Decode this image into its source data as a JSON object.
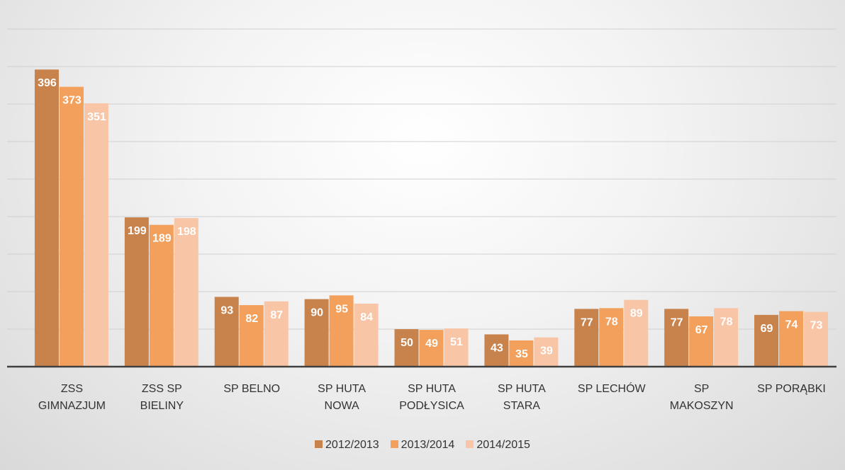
{
  "chart_data": {
    "type": "bar",
    "categories": [
      "ZSS GIMNAZJUM",
      "ZSS SP BIELINY",
      "SP BELNO",
      "SP HUTA NOWA",
      "SP HUTA PODŁYSICA",
      "SP HUTA STARA",
      "SP LECHÓW",
      "SP MAKOSZYN",
      "SP PORĄBKI"
    ],
    "series": [
      {
        "name": "2012/2013",
        "color": "#c8834c",
        "values": [
          396,
          199,
          93,
          90,
          50,
          43,
          77,
          77,
          69
        ]
      },
      {
        "name": "2013/2014",
        "color": "#f3a05c",
        "values": [
          373,
          189,
          82,
          95,
          49,
          35,
          78,
          67,
          74
        ]
      },
      {
        "name": "2014/2015",
        "color": "#f8c6a6",
        "values": [
          351,
          198,
          87,
          84,
          51,
          39,
          89,
          78,
          73
        ]
      }
    ],
    "ylim": [
      0,
      450
    ],
    "yticks": [
      0,
      50,
      100,
      150,
      200,
      250,
      300,
      350,
      400,
      450
    ],
    "grid": true,
    "legend": "bottom"
  }
}
